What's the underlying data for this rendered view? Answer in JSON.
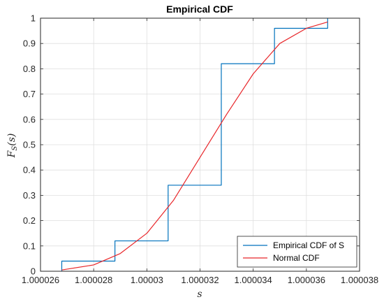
{
  "chart_data": {
    "type": "line",
    "title": "Empirical CDF",
    "xlabel": "s",
    "ylabel": "F_S(s)",
    "ylabel_main": "F",
    "ylabel_sub": "S",
    "ylabel_arg": "(s)",
    "xlim": [
      1.000026,
      1.000038
    ],
    "ylim": [
      0,
      1
    ],
    "xticks": [
      "1.000026",
      "1.000028",
      "1.00003",
      "1.000032",
      "1.000034",
      "1.000036",
      "1.000038"
    ],
    "yticks": [
      "0",
      "0.1",
      "0.2",
      "0.3",
      "0.4",
      "0.5",
      "0.6",
      "0.7",
      "0.8",
      "0.9",
      "1"
    ],
    "grid": true,
    "legend_position": "bottom-right",
    "series": [
      {
        "name": "Empirical CDF of S",
        "kind": "step",
        "color": "#0072BD",
        "x": [
          1.0000268,
          1.0000288,
          1.0000308,
          1.0000328,
          1.0000348,
          1.0000368
        ],
        "y": [
          0.04,
          0.12,
          0.34,
          0.82,
          0.96,
          1.0
        ]
      },
      {
        "name": "Normal CDF",
        "kind": "line",
        "color": "#E8262A",
        "x": [
          1.0000268,
          1.000028,
          1.000029,
          1.00003,
          1.000031,
          1.000032,
          1.000033,
          1.000034,
          1.000035,
          1.000036,
          1.0000368
        ],
        "y": [
          0.005,
          0.025,
          0.07,
          0.15,
          0.28,
          0.45,
          0.62,
          0.78,
          0.9,
          0.96,
          0.985
        ]
      }
    ]
  }
}
